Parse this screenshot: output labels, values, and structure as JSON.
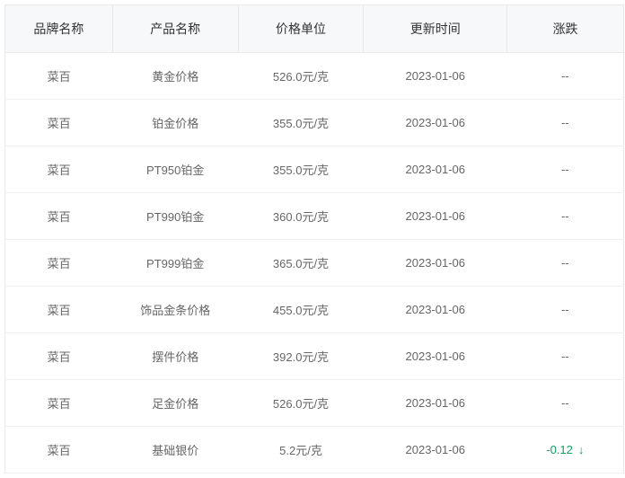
{
  "columns": [
    {
      "key": "brand",
      "label": "品牌名称"
    },
    {
      "key": "product",
      "label": "产品名称"
    },
    {
      "key": "price",
      "label": "价格单位"
    },
    {
      "key": "date",
      "label": "更新时间"
    },
    {
      "key": "change",
      "label": "涨跌"
    }
  ],
  "rows": [
    {
      "brand": "菜百",
      "product": "黄金价格",
      "price": "526.0元/克",
      "date": "2023-01-06",
      "change": "--",
      "direction": "none"
    },
    {
      "brand": "菜百",
      "product": "铂金价格",
      "price": "355.0元/克",
      "date": "2023-01-06",
      "change": "--",
      "direction": "none"
    },
    {
      "brand": "菜百",
      "product": "PT950铂金",
      "price": "355.0元/克",
      "date": "2023-01-06",
      "change": "--",
      "direction": "none"
    },
    {
      "brand": "菜百",
      "product": "PT990铂金",
      "price": "360.0元/克",
      "date": "2023-01-06",
      "change": "--",
      "direction": "none"
    },
    {
      "brand": "菜百",
      "product": "PT999铂金",
      "price": "365.0元/克",
      "date": "2023-01-06",
      "change": "--",
      "direction": "none"
    },
    {
      "brand": "菜百",
      "product": "饰品金条价格",
      "price": "455.0元/克",
      "date": "2023-01-06",
      "change": "--",
      "direction": "none"
    },
    {
      "brand": "菜百",
      "product": "摆件价格",
      "price": "392.0元/克",
      "date": "2023-01-06",
      "change": "--",
      "direction": "none"
    },
    {
      "brand": "菜百",
      "product": "足金价格",
      "price": "526.0元/克",
      "date": "2023-01-06",
      "change": "--",
      "direction": "none"
    },
    {
      "brand": "菜百",
      "product": "基础银价",
      "price": "5.2元/克",
      "date": "2023-01-06",
      "change": "-0.12",
      "direction": "down"
    }
  ],
  "styling": {
    "header_bg": "#f7f8fa",
    "header_text_color": "#333333",
    "cell_text_color": "#666666",
    "border_color": "#e8e8e8",
    "row_border_color": "#f0f0f0",
    "down_color": "#11a05e",
    "font_size_header": 14,
    "font_size_cell": 13,
    "col_widths": {
      "brand": 120,
      "product": 140,
      "price": 140,
      "date": 160,
      "change": 130
    }
  }
}
